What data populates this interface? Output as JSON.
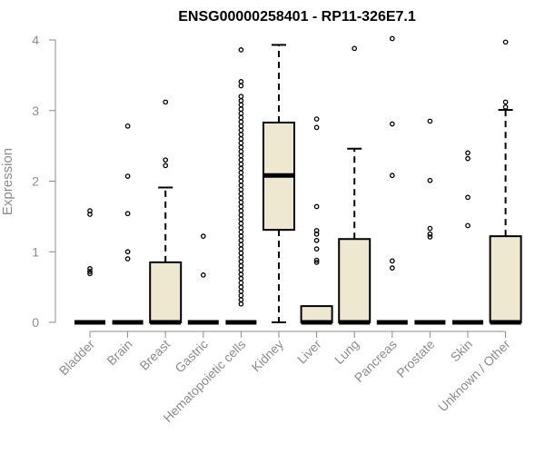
{
  "chart_data": {
    "type": "boxplot",
    "title": "ENSG00000258401 - RP11-326E7.1",
    "ylabel": "Expression",
    "xlabel": "",
    "ylim": [
      0,
      4
    ],
    "yticks": [
      0,
      1,
      2,
      3,
      4
    ],
    "categories": [
      "Bladder",
      "Brain",
      "Breast",
      "Gastric",
      "Hematopoietic cells",
      "Kidney",
      "Liver",
      "Lung",
      "Pancreas",
      "Prostate",
      "Skin",
      "Unknown / Other"
    ],
    "boxes": [
      {
        "category": "Bladder",
        "q1": 0,
        "median": 0,
        "q3": 0,
        "whisker_low": 0,
        "whisker_high": 0,
        "outliers": [
          1.58,
          1.53,
          0.76,
          0.72,
          0.69
        ]
      },
      {
        "category": "Brain",
        "q1": 0,
        "median": 0,
        "q3": 0,
        "whisker_low": 0,
        "whisker_high": 0,
        "outliers": [
          2.78,
          2.07,
          1.54,
          1.0,
          0.9
        ]
      },
      {
        "category": "Breast",
        "q1": 0,
        "median": 0,
        "q3": 0.85,
        "whisker_low": 0,
        "whisker_high": 1.91,
        "outliers": [
          3.12,
          2.3,
          2.22
        ]
      },
      {
        "category": "Gastric",
        "q1": 0,
        "median": 0,
        "q3": 0,
        "whisker_low": 0,
        "whisker_high": 0,
        "outliers": [
          1.22,
          0.67
        ]
      },
      {
        "category": "Hematopoietic cells",
        "q1": 0,
        "median": 0,
        "q3": 0,
        "whisker_low": 0,
        "whisker_high": 0,
        "outliers": [
          3.86,
          3.41,
          3.35,
          3.2,
          3.14,
          3.08,
          3.02,
          2.96,
          2.9,
          2.84,
          2.78,
          2.72,
          2.66,
          2.6,
          2.54,
          2.48,
          2.42,
          2.36,
          2.3,
          2.24,
          2.18,
          2.12,
          2.06,
          2.0,
          1.94,
          1.88,
          1.82,
          1.76,
          1.7,
          1.64,
          1.58,
          1.52,
          1.46,
          1.4,
          1.34,
          1.28,
          1.22,
          1.16,
          1.1,
          1.04,
          0.98,
          0.92,
          0.86,
          0.8,
          0.74,
          0.68,
          0.62,
          0.56,
          0.5,
          0.44,
          0.38,
          0.32,
          0.26
        ]
      },
      {
        "category": "Kidney",
        "q1": 1.31,
        "median": 2.08,
        "q3": 2.83,
        "whisker_low": 0,
        "whisker_high": 3.93,
        "outliers": []
      },
      {
        "category": "Liver",
        "q1": 0,
        "median": 0,
        "q3": 0.23,
        "whisker_low": 0,
        "whisker_high": 0.23,
        "outliers": [
          2.88,
          2.76,
          1.64,
          1.3,
          1.25,
          1.16,
          1.04,
          0.88,
          0.85
        ]
      },
      {
        "category": "Lung",
        "q1": 0,
        "median": 0,
        "q3": 1.18,
        "whisker_low": 0,
        "whisker_high": 2.46,
        "outliers": [
          3.88
        ]
      },
      {
        "category": "Pancreas",
        "q1": 0,
        "median": 0,
        "q3": 0,
        "whisker_low": 0,
        "whisker_high": 0,
        "outliers": [
          4.02,
          2.81,
          2.08,
          0.87,
          0.77
        ]
      },
      {
        "category": "Prostate",
        "q1": 0,
        "median": 0,
        "q3": 0,
        "whisker_low": 0,
        "whisker_high": 0,
        "outliers": [
          2.85,
          2.01,
          1.33,
          1.25,
          1.21
        ]
      },
      {
        "category": "Skin",
        "q1": 0,
        "median": 0,
        "q3": 0,
        "whisker_low": 0,
        "whisker_high": 0,
        "outliers": [
          2.4,
          2.32,
          1.77,
          1.37
        ]
      },
      {
        "category": "Unknown / Other",
        "q1": 0,
        "median": 0,
        "q3": 1.22,
        "whisker_low": 0,
        "whisker_high": 3.01,
        "outliers": [
          3.97,
          3.12,
          3.05
        ]
      }
    ],
    "colors": {
      "box_fill": "#efe8d0",
      "box_stroke": "#000000",
      "axis": "#8c8c8c"
    },
    "grid": false,
    "legend": "none"
  }
}
